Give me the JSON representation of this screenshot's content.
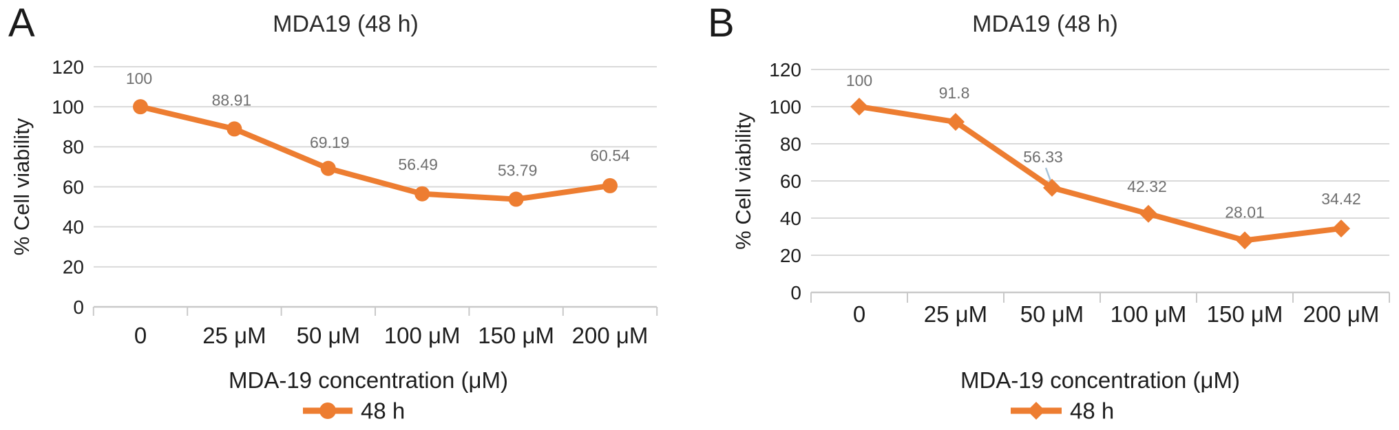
{
  "figure": {
    "background": "#ffffff",
    "panels": [
      {
        "letter": "A"
      },
      {
        "letter": "B"
      }
    ],
    "colors": {
      "series": "#ED7D31",
      "data_label": "#6F6F6F",
      "tick_label": "#1d1d1d",
      "title": "#2b2b2b",
      "axis_title": "#1d1d1d",
      "gridline": "#D9D9D9",
      "axis_line": "#C9C9C9",
      "leader_line": "#A9C5DA",
      "legend_text": "#1d1d1d"
    }
  },
  "chart_data": [
    {
      "type": "line",
      "title": "MDA19 (48 h)",
      "xlabel": "MDA-19 concentration (μM)",
      "ylabel": "% Cell viability",
      "ylim": [
        0,
        120
      ],
      "ytick_step": 20,
      "ytick_labels": [
        "120",
        "100",
        "80",
        "60",
        "40",
        "20",
        "0"
      ],
      "categories": [
        "0",
        "25 μM",
        "50 μM",
        "100 μM",
        "150 μM",
        "200 μM"
      ],
      "grid": true,
      "legend_position": "bottom",
      "series": [
        {
          "name": "48 h",
          "values": [
            100,
            88.91,
            69.19,
            56.49,
            53.79,
            60.54
          ],
          "data_labels": [
            "100",
            "88.91",
            "69.19",
            "56.49",
            "53.79",
            "60.54"
          ],
          "marker": "circle",
          "color": "#ED7D31"
        }
      ]
    },
    {
      "type": "line",
      "title": "MDA19 (48 h)",
      "xlabel": "MDA-19 concentration (μM)",
      "ylabel": "% Cell viability",
      "ylim": [
        0,
        120
      ],
      "ytick_step": 20,
      "ytick_labels": [
        "120",
        "100",
        "80",
        "60",
        "40",
        "20",
        "0"
      ],
      "categories": [
        "0",
        "25 μM",
        "50 μM",
        "100 μM",
        "150 μM",
        "200 μM"
      ],
      "grid": true,
      "legend_position": "bottom",
      "series": [
        {
          "name": "48 h",
          "values": [
            100,
            91.8,
            56.33,
            42.32,
            28.01,
            34.42
          ],
          "data_labels": [
            "100",
            "91.8",
            "56.33",
            "42.32",
            "28.01",
            "34.42"
          ],
          "marker": "diamond",
          "color": "#ED7D31"
        }
      ]
    }
  ]
}
